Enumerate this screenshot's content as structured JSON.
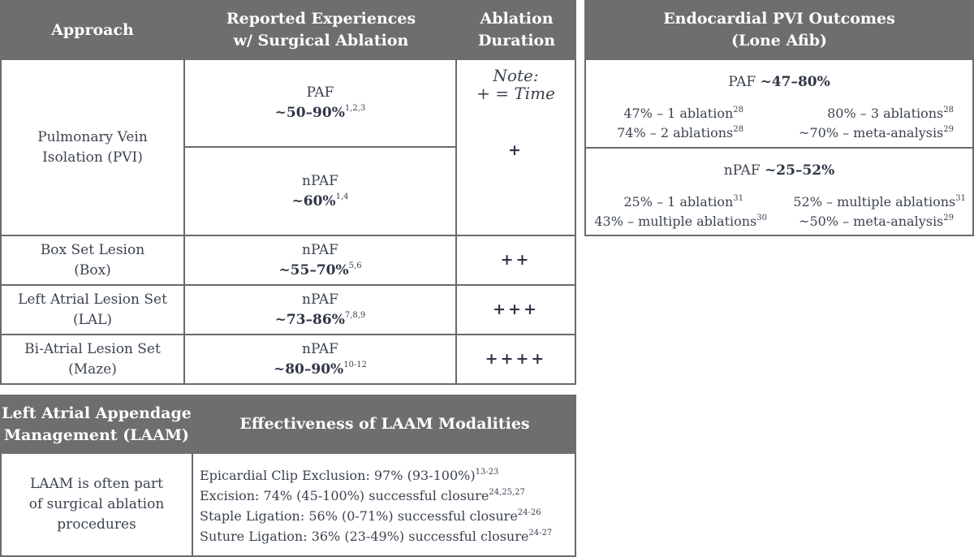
{
  "main_table": {
    "headers": {
      "approach": [
        "Approach"
      ],
      "experiences": [
        "Reported Experiences",
        "w/ Surgical Ablation"
      ],
      "duration": [
        "Ablation",
        "Duration"
      ]
    },
    "note_line1": "Note:",
    "note_line2": "+ = Time",
    "rows": [
      {
        "approach": [
          "Pulmonary Vein",
          "Isolation (PVI)"
        ],
        "duration": "+",
        "sub": [
          {
            "type": "PAF",
            "value": "~50–90%",
            "ref": "1,2,3"
          },
          {
            "type": "nPAF",
            "value": "~60%",
            "ref": "1,4"
          }
        ]
      },
      {
        "approach": [
          "Box Set Lesion",
          "(Box)"
        ],
        "type": "nPAF",
        "value": "~55–70%",
        "ref": "5,6",
        "duration": "++"
      },
      {
        "approach": [
          "Left Atrial Lesion Set",
          "(LAL)"
        ],
        "type": "nPAF",
        "value": "~73–86%",
        "ref": "7,8,9",
        "duration": "+++"
      },
      {
        "approach": [
          "Bi-Atrial Lesion Set",
          "(Maze)"
        ],
        "type": "nPAF",
        "value": "~80–90%",
        "ref": "10-12",
        "duration": "++++"
      }
    ]
  },
  "outcomes": {
    "title": [
      "Endocardial PVI Outcomes",
      "(Lone Afib)"
    ],
    "paf": {
      "label": "PAF",
      "range": "~47–80%",
      "items": [
        {
          "text": "47% – 1 ablation",
          "ref": "28"
        },
        {
          "text": "80% – 3 ablations",
          "ref": "28"
        },
        {
          "text": "74% – 2 ablations",
          "ref": "28"
        },
        {
          "text": "~70% – meta-analysis",
          "ref": "29"
        }
      ]
    },
    "npaf": {
      "label": "nPAF",
      "range": "~25–52%",
      "items": [
        {
          "text": "25% – 1 ablation",
          "ref": "31"
        },
        {
          "text": "52% – multiple ablations",
          "ref": "31"
        },
        {
          "text": "43% – multiple ablations",
          "ref": "30"
        },
        {
          "text": "~50% – meta-analysis",
          "ref": "29"
        }
      ]
    }
  },
  "laam": {
    "header_left": [
      "Left Atrial Appendage",
      "Management (LAAM)"
    ],
    "header_right": "Effectiveness of LAAM Modalities",
    "left_text": [
      "LAAM is often part",
      "of surgical ablation",
      "procedures"
    ],
    "modalities": [
      {
        "text": "Epicardial Clip Exclusion: 97% (93-100%)",
        "ref": "13-23"
      },
      {
        "text": "Excision: 74% (45-100%) successful closure",
        "ref": "24,25,27"
      },
      {
        "text": "Staple Ligation: 56% (0-71%) successful closure",
        "ref": "24-26"
      },
      {
        "text": "Suture Ligation: 36% (23-49%) successful closure",
        "ref": "24-27"
      }
    ]
  }
}
